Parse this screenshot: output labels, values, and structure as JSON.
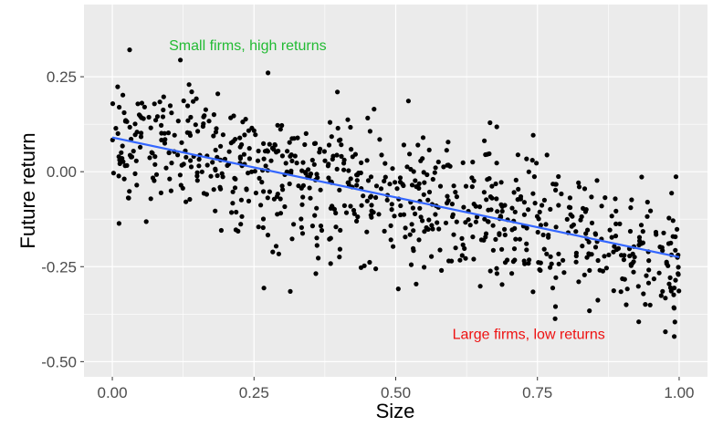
{
  "chart_data": {
    "type": "scatter",
    "xlabel": "Size",
    "ylabel": "Future return",
    "xlim": [
      -0.05,
      1.05
    ],
    "ylim": [
      -0.54,
      0.44
    ],
    "x_ticks": [
      0,
      0.25,
      0.5,
      0.75,
      1
    ],
    "x_tick_labels": [
      "0.00",
      "0.25",
      "0.50",
      "0.75",
      "1.00"
    ],
    "y_ticks": [
      -0.5,
      -0.25,
      0,
      0.25
    ],
    "y_tick_labels": [
      "-0.50",
      "-0.25",
      "0.00",
      "0.25"
    ],
    "grid": true,
    "legend": "none",
    "n_points": 800,
    "trend_line": {
      "x": [
        0,
        1
      ],
      "y": [
        0.09,
        -0.225
      ]
    },
    "annotations": [
      {
        "text": "Small firms, high returns",
        "x": 0.1,
        "y": 0.32,
        "color": "#22bb33"
      },
      {
        "text": "Large firms, low returns",
        "x": 0.6,
        "y": -0.44,
        "color": "#ee1111"
      }
    ],
    "colors": {
      "panel_bg": "#ebebeb",
      "grid": "#ffffff",
      "points": "#000000",
      "trend": "#3366ff"
    }
  }
}
